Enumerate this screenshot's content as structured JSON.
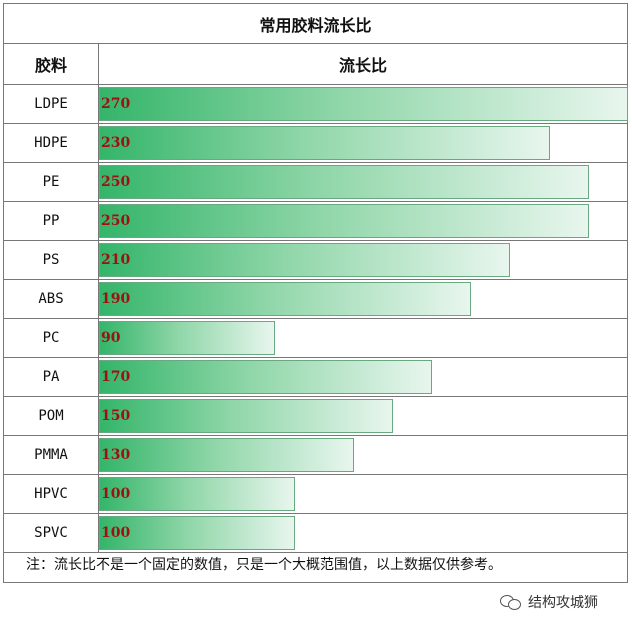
{
  "chart_data": {
    "type": "bar",
    "orientation": "horizontal",
    "title": "常用胶料流长比",
    "column_headers": [
      "胶料",
      "流长比"
    ],
    "categories": [
      "LDPE",
      "HDPE",
      "PE",
      "PP",
      "PS",
      "ABS",
      "PC",
      "PA",
      "POM",
      "PMMA",
      "HPVC",
      "SPVC"
    ],
    "values": [
      270,
      230,
      250,
      250,
      210,
      190,
      90,
      170,
      150,
      130,
      100,
      100
    ],
    "xlim": [
      0,
      270
    ],
    "grid": false,
    "legend": "none",
    "bar_gradient": [
      "#34b56a",
      "#e8f6ee"
    ],
    "value_color": "#a01010"
  },
  "note": "注：流长比不是一个固定的数值，只是一个大概范围值，以上数据仅供参考。",
  "watermark": "结构攻城狮"
}
